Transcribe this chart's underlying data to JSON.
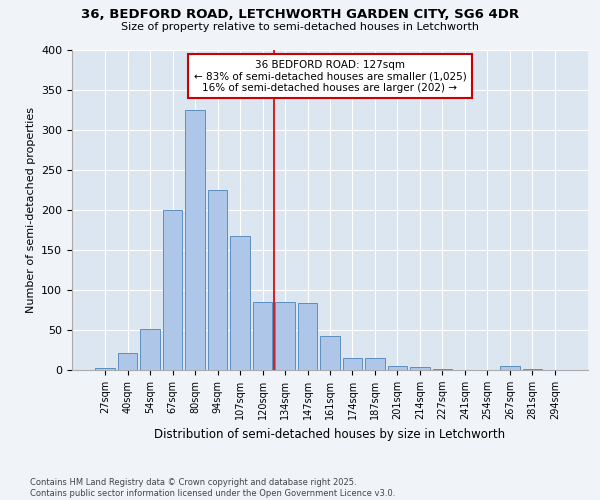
{
  "title": "36, BEDFORD ROAD, LETCHWORTH GARDEN CITY, SG6 4DR",
  "subtitle": "Size of property relative to semi-detached houses in Letchworth",
  "xlabel": "Distribution of semi-detached houses by size in Letchworth",
  "ylabel": "Number of semi-detached properties",
  "bar_labels": [
    "27sqm",
    "40sqm",
    "54sqm",
    "67sqm",
    "80sqm",
    "94sqm",
    "107sqm",
    "120sqm",
    "134sqm",
    "147sqm",
    "161sqm",
    "174sqm",
    "187sqm",
    "201sqm",
    "214sqm",
    "227sqm",
    "241sqm",
    "254sqm",
    "267sqm",
    "281sqm",
    "294sqm"
  ],
  "bar_values": [
    3,
    21,
    51,
    200,
    325,
    225,
    168,
    85,
    85,
    84,
    43,
    15,
    15,
    5,
    4,
    1,
    0,
    0,
    5,
    1,
    0
  ],
  "bar_color": "#aec6e8",
  "bar_edge_color": "#5a8fc0",
  "ylim": [
    0,
    400
  ],
  "yticks": [
    0,
    50,
    100,
    150,
    200,
    250,
    300,
    350,
    400
  ],
  "bg_color": "#dce6f0",
  "fig_bg_color": "#f0f4f8",
  "footnote": "Contains HM Land Registry data © Crown copyright and database right 2025.\nContains public sector information licensed under the Open Government Licence v3.0.",
  "red_line_color": "#cc0000",
  "annotation_box_edge_color": "#cc0000",
  "annotation_line1": "36 BEDFORD ROAD: 127sqm",
  "annotation_line2": "← 83% of semi-detached houses are smaller (1,025)",
  "annotation_line3": "16% of semi-detached houses are larger (202) →"
}
